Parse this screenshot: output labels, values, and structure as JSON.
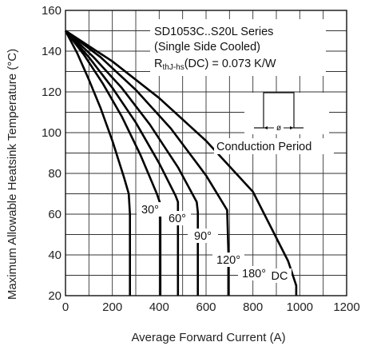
{
  "chart_data": {
    "type": "line",
    "title": "",
    "xlabel": "Average Forward Current (A)",
    "ylabel": "Maximum Allowable Heatsink Temperature (°C)",
    "xlim": [
      0,
      1200
    ],
    "ylim": [
      20,
      160
    ],
    "x_ticks": [
      "0",
      "200",
      "400",
      "600",
      "800",
      "1000",
      "1200"
    ],
    "y_ticks": [
      "20",
      "40",
      "60",
      "80",
      "100",
      "120",
      "140",
      "160"
    ],
    "grid": true,
    "legend": "none",
    "annotation": {
      "line1": "SD1053C..S20L Series",
      "line2": "(Single Side Cooled)",
      "line3_main": "R",
      "line3_sub": "thJ-hs",
      "line3_rest": "(DC) = 0.073 K/W",
      "inset_label": "Conduction Period",
      "inset_symbol": "ø"
    },
    "series": [
      {
        "name": "30°",
        "label": "30°",
        "x": [
          0,
          50,
          100,
          150,
          200,
          250,
          270,
          275,
          275
        ],
        "y": [
          150,
          139,
          126,
          112,
          96,
          78,
          70,
          60,
          20
        ]
      },
      {
        "name": "60°",
        "label": "60°",
        "x": [
          0,
          80,
          160,
          240,
          320,
          390,
          405,
          405
        ],
        "y": [
          150,
          138,
          124,
          108,
          89,
          70,
          65,
          20
        ]
      },
      {
        "name": "90°",
        "label": "90°",
        "x": [
          0,
          100,
          200,
          300,
          400,
          470,
          480,
          480
        ],
        "y": [
          150,
          137,
          122,
          105,
          85,
          69,
          66,
          20
        ]
      },
      {
        "name": "120°",
        "label": "120°",
        "x": [
          0,
          120,
          240,
          360,
          480,
          560,
          565,
          565
        ],
        "y": [
          150,
          137,
          122,
          104,
          83,
          66,
          61,
          20
        ]
      },
      {
        "name": "180°",
        "label": "180°",
        "x": [
          0,
          150,
          300,
          450,
          600,
          690,
          695,
          695
        ],
        "y": [
          150,
          137,
          121,
          102,
          79,
          62,
          42,
          20
        ]
      },
      {
        "name": "DC",
        "label": "DC",
        "x": [
          0,
          200,
          400,
          600,
          800,
          950,
          985,
          985
        ],
        "y": [
          150,
          135,
          117,
          96,
          71,
          37,
          25,
          20
        ]
      }
    ]
  }
}
